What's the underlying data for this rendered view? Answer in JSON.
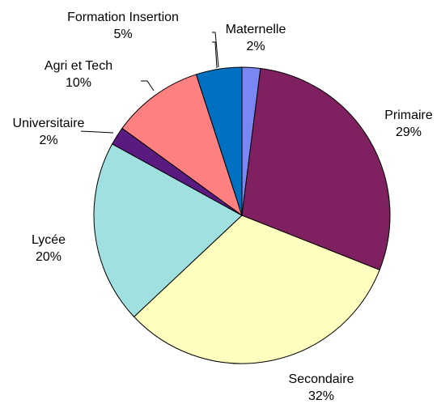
{
  "chart_data": {
    "type": "pie",
    "categories": [
      "Maternelle",
      "Primaire",
      "Secondaire",
      "Lycée",
      "Universitaire",
      "Agri et Tech",
      "Formation Insertion"
    ],
    "values": [
      2,
      29,
      32,
      20,
      2,
      10,
      5
    ],
    "value_labels": [
      "2%",
      "29%",
      "32%",
      "20%",
      "2%",
      "10%",
      "5%"
    ],
    "colors": [
      "#7b86f5",
      "#7f2160",
      "#ffffc0",
      "#a0e0e0",
      "#5a1a80",
      "#ff8080",
      "#0070c0"
    ]
  }
}
